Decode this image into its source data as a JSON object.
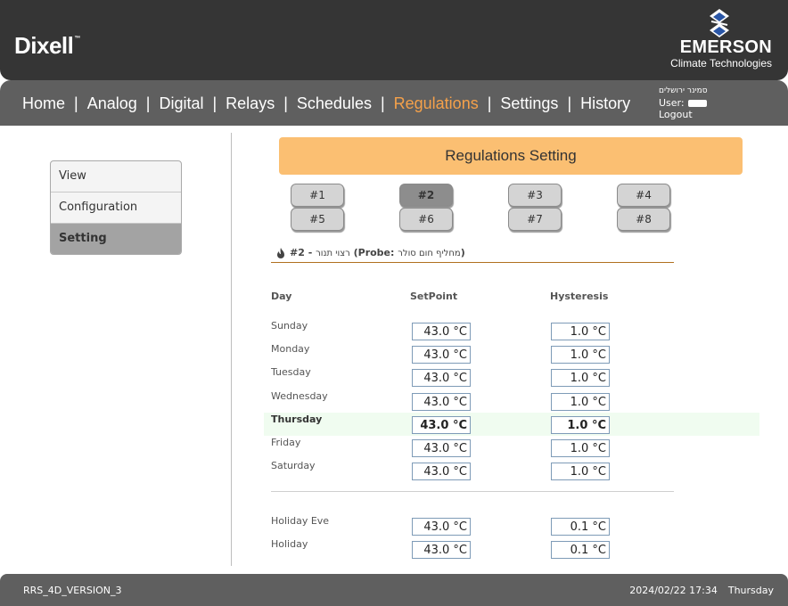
{
  "header": {
    "brand": "Dixell",
    "brand_tm": "™",
    "partner_line1": "EMERSON",
    "partner_line2": "Climate Technologies"
  },
  "nav": {
    "items": [
      {
        "label": "Home"
      },
      {
        "label": "Analog"
      },
      {
        "label": "Digital"
      },
      {
        "label": "Relays"
      },
      {
        "label": "Schedules"
      },
      {
        "label": "Regulations"
      },
      {
        "label": "Settings"
      },
      {
        "label": "History"
      }
    ],
    "separator": "|",
    "active": "Regulations"
  },
  "user": {
    "location": "סמינר ירושלים",
    "user_label": "User:",
    "logout": "Logout"
  },
  "sidebar": {
    "items": [
      {
        "label": "View"
      },
      {
        "label": "Configuration"
      },
      {
        "label": "Setting"
      }
    ],
    "active": "Setting"
  },
  "main": {
    "title": "Regulations Setting",
    "reg_buttons": [
      "#1",
      "#2",
      "#3",
      "#4",
      "#5",
      "#6",
      "#7",
      "#8"
    ],
    "active_reg": "#2",
    "probe_prefix": "#2 - ",
    "probe_name": "רצוי תנור",
    "probe_label": " (Probe: ",
    "probe_value": "מחליף חום סולר",
    "probe_suffix": ")",
    "columns": {
      "day": "Day",
      "setpoint": "SetPoint",
      "hysteresis": "Hysteresis"
    },
    "rows": [
      {
        "day": "Sunday",
        "setpoint": "43.0 °C",
        "hysteresis": "1.0 °C"
      },
      {
        "day": "Monday",
        "setpoint": "43.0 °C",
        "hysteresis": "1.0 °C"
      },
      {
        "day": "Tuesday",
        "setpoint": "43.0 °C",
        "hysteresis": "1.0 °C"
      },
      {
        "day": "Wednesday",
        "setpoint": "43.0 °C",
        "hysteresis": "1.0 °C"
      },
      {
        "day": "Thursday",
        "setpoint": "43.0 °C",
        "hysteresis": "1.0 °C"
      },
      {
        "day": "Friday",
        "setpoint": "43.0 °C",
        "hysteresis": "1.0 °C"
      },
      {
        "day": "Saturday",
        "setpoint": "43.0 °C",
        "hysteresis": "1.0 °C"
      }
    ],
    "today": "Thursday",
    "holiday_rows": [
      {
        "day": "Holiday Eve",
        "setpoint": "43.0 °C",
        "hysteresis": "0.1 °C"
      },
      {
        "day": "Holiday",
        "setpoint": "43.0 °C",
        "hysteresis": "0.1 °C"
      }
    ]
  },
  "footer": {
    "version": "RRS_4D_VERSION_3",
    "datetime": "2024/02/22 17:34",
    "weekday": "Thursday"
  },
  "colors": {
    "header_bg": "#353535",
    "nav_bg": "#5f5f5f",
    "nav_active": "#f5a14a",
    "title_bar": "#fbbf72",
    "today_row": "#f0fcf0"
  }
}
